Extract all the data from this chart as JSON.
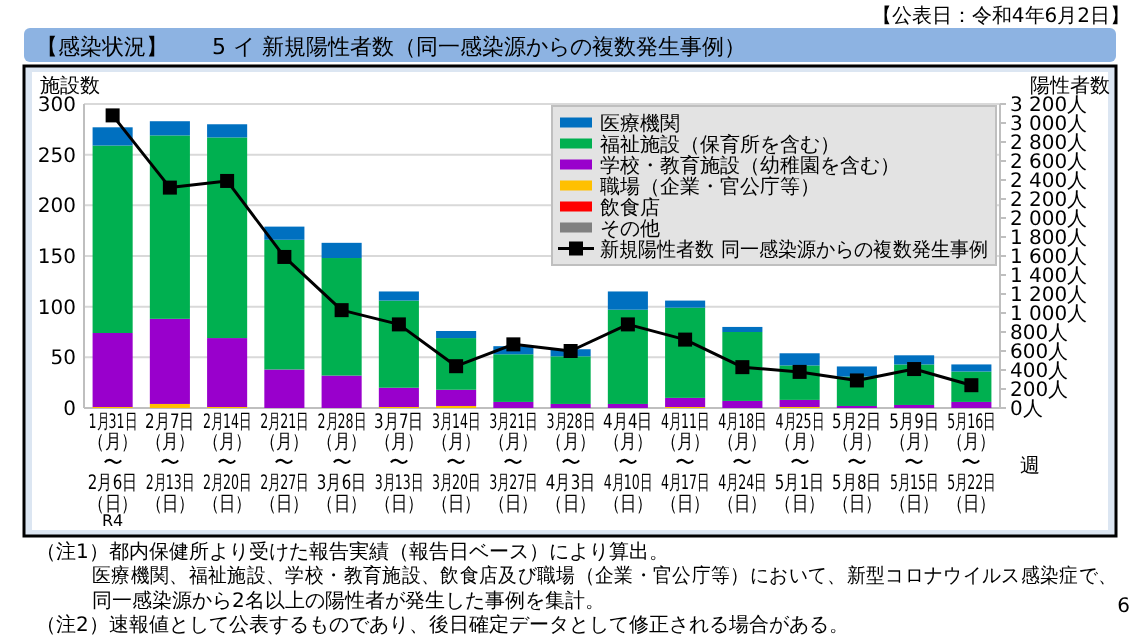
{
  "chart_data": {
    "type": "bar",
    "stacked": true,
    "title": "【感染状況】　　5 イ 新規陽性者数（同一感染源からの複数発生事例）",
    "ylabel": "施設数",
    "y2label": "陽性者数",
    "xlabel": "週",
    "categories": [
      "1月31日（月）〜2月6日（日）",
      "2月7日（月）〜2月13日（日）",
      "2月14日（月）〜2月20日（日）",
      "2月21日（月）〜2月27日（日）",
      "2月28日（月）〜3月6日（日）",
      "3月7日（月）〜3月13日（日）",
      "3月14日（月）〜3月20日（日）",
      "3月21日（月）〜3月27日（日）",
      "3月28日（月）〜4月3日（日）",
      "4月4日（月）〜4月10日（日）",
      "4月11日（月）〜4月17日（日）",
      "4月18日（月）〜4月24日（日）",
      "4月25日（月）〜5月1日（日）",
      "5月2日（月）〜5月8日（日）",
      "5月9日（月）〜5月15日（日）",
      "5月16日（月）〜5月22日（日）"
    ],
    "series": [
      {
        "name": "その他",
        "color": "#808080",
        "values": [
          0,
          0,
          0,
          0,
          0,
          0,
          0,
          0,
          0,
          0,
          0,
          0,
          0,
          0,
          0,
          0
        ]
      },
      {
        "name": "飲食店",
        "color": "#ff0000",
        "values": [
          0,
          0,
          0,
          0,
          0,
          0,
          0,
          0,
          0,
          0,
          0,
          0,
          0,
          0,
          0,
          0
        ]
      },
      {
        "name": "職場（企業・官公庁等）",
        "color": "#ffc000",
        "values": [
          1,
          4,
          1,
          0,
          0,
          1,
          2,
          0,
          0,
          0,
          1,
          0,
          1,
          0,
          0,
          0
        ]
      },
      {
        "name": "学校・教育施設（幼稚園を含む）",
        "color": "#9900cc",
        "values": [
          73,
          84,
          68,
          38,
          32,
          19,
          16,
          6,
          4,
          4,
          9,
          7,
          7,
          2,
          3,
          6
        ]
      },
      {
        "name": "福祉施設（保育所を含む）",
        "color": "#00b050",
        "values": [
          185,
          181,
          198,
          128,
          116,
          86,
          51,
          47,
          47,
          93,
          89,
          68,
          34,
          29,
          40,
          30
        ]
      },
      {
        "name": "医療機関",
        "color": "#0070c0",
        "values": [
          18,
          14,
          13,
          13,
          15,
          9,
          7,
          8,
          7,
          18,
          7,
          5,
          12,
          10,
          9,
          7
        ]
      },
      {
        "name": "新規陽性者数 同一感染源からの複数発生事例",
        "type": "line",
        "axis": "y2",
        "color": "#000000",
        "values": [
          3080,
          2320,
          2390,
          1590,
          1030,
          880,
          440,
          670,
          600,
          880,
          720,
          430,
          380,
          290,
          410,
          240
        ]
      }
    ],
    "marker": "square",
    "line_style": "solid",
    "ylim": [
      0,
      300
    ],
    "yticks": [
      0,
      50,
      100,
      150,
      200,
      250,
      300
    ],
    "y2lim": [
      0,
      3200
    ],
    "y2ticks": [
      {
        "value": 0,
        "label": "0人"
      },
      {
        "value": 200,
        "label": "200人"
      },
      {
        "value": 400,
        "label": "400人"
      },
      {
        "value": 600,
        "label": "600人"
      },
      {
        "value": 800,
        "label": "800人"
      },
      {
        "value": 1000,
        "label": "1 000人"
      },
      {
        "value": 1200,
        "label": "1 200人"
      },
      {
        "value": 1400,
        "label": "1 400人"
      },
      {
        "value": 1600,
        "label": "1 600人"
      },
      {
        "value": 1800,
        "label": "1 800人"
      },
      {
        "value": 2000,
        "label": "2 000人"
      },
      {
        "value": 2200,
        "label": "2 200人"
      },
      {
        "value": 2400,
        "label": "2 400人"
      },
      {
        "value": 2600,
        "label": "2 600人"
      },
      {
        "value": 2800,
        "label": "2 800人"
      },
      {
        "value": 3000,
        "label": "3 000人"
      },
      {
        "value": 3200,
        "label": "3 200人"
      }
    ],
    "grid": "y",
    "legend": "top right",
    "annotations": [
      "【公表日：令和4年6月2日】",
      "R4",
      "（注1）都内保健所より受けた報告実績（報告日ベース）により算出。",
      "医療機関、福祉施設、学校・教育施設、飲食店及び職場（企業・官公庁等）において、新型コロナウイルス感染症で、",
      "同一感染源から2名以上の陽性者が発生した事例を集計。",
      "（注2）速報値として公表するものであり、後日確定データとして修正される場合がある。",
      "6"
    ]
  }
}
